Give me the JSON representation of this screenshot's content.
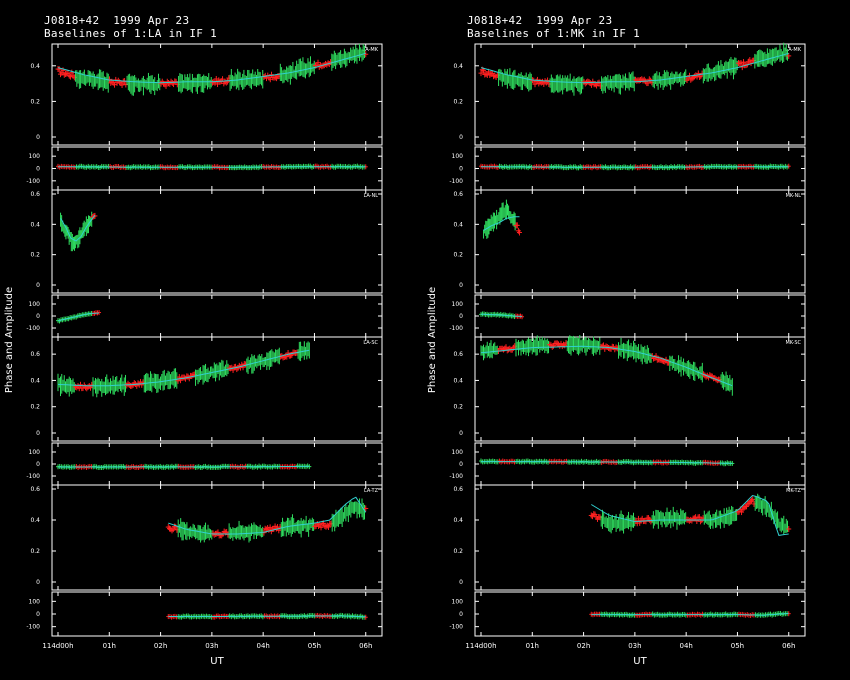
{
  "colors": {
    "background": "#000000",
    "axes": "#ffffff",
    "model": "#30d0d0",
    "series_a": "#30e060",
    "series_b": "#ff2020"
  },
  "y_axis_label": "Phase and Amplitude",
  "x_axis_label": "UT",
  "x_tick_labels": [
    "114d00h",
    "01h",
    "02h",
    "03h",
    "04h",
    "05h",
    "06h"
  ],
  "amp_tick_labels": [
    "0",
    "0.2",
    "0.4",
    "0.6"
  ],
  "phase_tick_labels": [
    "-100",
    "0",
    "100"
  ],
  "chart_data": [
    {
      "type": "line",
      "header": {
        "line1": "J0818+42  1999 Apr 23",
        "line2": "Baselines of 1:LA in IF 1"
      },
      "xlabel": "UT",
      "ylabel": "Phase and Amplitude",
      "xlim": [
        0,
        6.2
      ],
      "baselines": [
        {
          "name": "LA-MK",
          "amplitude": {
            "ylim": [
              0,
              0.5
            ],
            "ticks": [
              0,
              0.2,
              0.4
            ],
            "model_x": [
              0,
              0.5,
              1,
              1.5,
              2,
              2.5,
              3,
              3.5,
              4,
              4.5,
              5,
              5.5,
              6
            ],
            "model_y": [
              0.39,
              0.35,
              0.32,
              0.31,
              0.305,
              0.31,
              0.31,
              0.32,
              0.34,
              0.36,
              0.39,
              0.43,
              0.47
            ],
            "data_x": [
              0,
              0.5,
              1,
              1.5,
              2,
              2.5,
              3,
              3.5,
              4,
              4.5,
              5,
              5.5,
              6
            ],
            "data_y": [
              0.37,
              0.33,
              0.31,
              0.3,
              0.3,
              0.3,
              0.31,
              0.32,
              0.33,
              0.36,
              0.4,
              0.44,
              0.47
            ]
          },
          "phase": {
            "ylim": [
              -150,
              150
            ],
            "ticks": [
              -100,
              0,
              100
            ],
            "model_x": [
              0,
              1,
              2,
              3,
              4,
              5,
              6
            ],
            "model_y": [
              15,
              12,
              10,
              10,
              12,
              15,
              15
            ]
          }
        },
        {
          "name": "LA-NL",
          "amplitude": {
            "ylim": [
              0,
              0.6
            ],
            "ticks": [
              0,
              0.2,
              0.4,
              0.6
            ],
            "model_x": [
              0.05,
              0.15,
              0.25,
              0.35,
              0.45,
              0.55,
              0.65,
              0.72
            ],
            "model_y": [
              0.44,
              0.38,
              0.31,
              0.29,
              0.32,
              0.38,
              0.43,
              0.46
            ],
            "data_x": [
              0.05,
              0.15,
              0.25,
              0.35,
              0.45,
              0.55,
              0.65,
              0.72
            ],
            "data_y": [
              0.42,
              0.36,
              0.3,
              0.28,
              0.33,
              0.38,
              0.44,
              0.45
            ]
          },
          "phase": {
            "ylim": [
              -150,
              150
            ],
            "ticks": [
              -100,
              0,
              100
            ],
            "model_x": [
              0,
              0.3,
              0.6,
              0.8
            ],
            "model_y": [
              -40,
              -10,
              20,
              25
            ]
          }
        },
        {
          "name": "LA-SC",
          "amplitude": {
            "ylim": [
              0,
              0.7
            ],
            "ticks": [
              0,
              0.2,
              0.4,
              0.6
            ],
            "model_x": [
              0,
              0.5,
              1,
              1.5,
              2,
              2.5,
              3,
              3.5,
              4,
              4.5,
              4.9
            ],
            "model_y": [
              0.37,
              0.36,
              0.36,
              0.37,
              0.39,
              0.42,
              0.46,
              0.5,
              0.55,
              0.6,
              0.63
            ],
            "data_x": [
              0,
              0.5,
              1,
              1.5,
              2,
              2.5,
              3,
              3.5,
              4,
              4.5,
              4.9
            ],
            "data_y": [
              0.37,
              0.35,
              0.36,
              0.37,
              0.39,
              0.42,
              0.46,
              0.5,
              0.55,
              0.6,
              0.63
            ]
          },
          "phase": {
            "ylim": [
              -150,
              150
            ],
            "ticks": [
              -100,
              0,
              100
            ],
            "model_x": [
              0,
              1,
              2,
              3,
              4,
              4.9
            ],
            "model_y": [
              -25,
              -25,
              -24,
              -24,
              -22,
              -20
            ]
          }
        },
        {
          "name": "LA-TZ",
          "amplitude": {
            "ylim": [
              0,
              0.6
            ],
            "ticks": [
              0,
              0.2,
              0.4,
              0.6
            ],
            "model_x": [
              2.15,
              2.5,
              3,
              3.5,
              4,
              4.5,
              5,
              5.3,
              5.6,
              5.8,
              6.0
            ],
            "model_y": [
              0.38,
              0.34,
              0.31,
              0.31,
              0.32,
              0.36,
              0.38,
              0.4,
              0.5,
              0.55,
              0.45
            ],
            "data_x": [
              2.15,
              2.5,
              3,
              3.5,
              4,
              4.5,
              5,
              5.3,
              5.6,
              5.8,
              6.0
            ],
            "data_y": [
              0.35,
              0.33,
              0.31,
              0.32,
              0.33,
              0.36,
              0.36,
              0.37,
              0.44,
              0.48,
              0.46
            ]
          },
          "phase": {
            "ylim": [
              -150,
              150
            ],
            "ticks": [
              -100,
              0,
              100
            ],
            "model_x": [
              2.15,
              3,
              4,
              5,
              5.5,
              6.0
            ],
            "model_y": [
              -20,
              -20,
              -18,
              -16,
              -15,
              -22
            ]
          }
        }
      ]
    },
    {
      "type": "line",
      "header": {
        "line1": "J0818+42  1999 Apr 23",
        "line2": "Baselines of 1:MK in IF 1"
      },
      "xlabel": "UT",
      "ylabel": "Phase and Amplitude",
      "xlim": [
        0,
        6.2
      ],
      "baselines": [
        {
          "name": "LA-MK",
          "amplitude": {
            "ylim": [
              0,
              0.5
            ],
            "ticks": [
              0,
              0.2,
              0.4
            ],
            "model_x": [
              0,
              0.5,
              1,
              1.5,
              2,
              2.5,
              3,
              3.5,
              4,
              4.5,
              5,
              5.5,
              6
            ],
            "model_y": [
              0.39,
              0.35,
              0.32,
              0.31,
              0.305,
              0.31,
              0.31,
              0.32,
              0.34,
              0.36,
              0.39,
              0.43,
              0.47
            ],
            "data_x": [
              0,
              0.5,
              1,
              1.5,
              2,
              2.5,
              3,
              3.5,
              4,
              4.5,
              5,
              5.5,
              6
            ],
            "data_y": [
              0.37,
              0.33,
              0.31,
              0.3,
              0.3,
              0.3,
              0.31,
              0.32,
              0.33,
              0.36,
              0.4,
              0.44,
              0.47
            ]
          },
          "phase": {
            "ylim": [
              -150,
              150
            ],
            "ticks": [
              -100,
              0,
              100
            ],
            "model_x": [
              0,
              1,
              2,
              3,
              4,
              5,
              6
            ],
            "model_y": [
              15,
              12,
              10,
              10,
              12,
              15,
              15
            ]
          }
        },
        {
          "name": "MK-NL",
          "amplitude": {
            "ylim": [
              0,
              0.6
            ],
            "ticks": [
              0,
              0.2,
              0.4,
              0.6
            ],
            "model_x": [
              0.05,
              0.2,
              0.35,
              0.5,
              0.65,
              0.75
            ],
            "model_y": [
              0.36,
              0.39,
              0.41,
              0.44,
              0.45,
              0.45
            ],
            "data_x": [
              0.05,
              0.2,
              0.35,
              0.5,
              0.65,
              0.75
            ],
            "data_y": [
              0.35,
              0.4,
              0.45,
              0.5,
              0.42,
              0.35
            ]
          },
          "phase": {
            "ylim": [
              -150,
              150
            ],
            "ticks": [
              -100,
              0,
              100
            ],
            "model_x": [
              0,
              0.4,
              0.8
            ],
            "model_y": [
              15,
              8,
              -5
            ]
          }
        },
        {
          "name": "MK-SC",
          "amplitude": {
            "ylim": [
              0,
              0.7
            ],
            "ticks": [
              0,
              0.2,
              0.4,
              0.6
            ],
            "model_x": [
              0,
              0.5,
              1,
              1.5,
              2,
              2.5,
              3,
              3.5,
              4,
              4.5,
              4.9
            ],
            "model_y": [
              0.61,
              0.63,
              0.65,
              0.655,
              0.66,
              0.65,
              0.62,
              0.57,
              0.5,
              0.42,
              0.36
            ],
            "data_x": [
              0,
              0.5,
              1,
              1.5,
              2,
              2.5,
              3,
              3.5,
              4,
              4.5,
              4.9
            ],
            "data_y": [
              0.62,
              0.64,
              0.66,
              0.67,
              0.67,
              0.65,
              0.62,
              0.56,
              0.49,
              0.42,
              0.36
            ]
          },
          "phase": {
            "ylim": [
              -150,
              150
            ],
            "ticks": [
              -100,
              0,
              100
            ],
            "model_x": [
              0,
              1,
              2,
              3,
              4,
              4.9
            ],
            "model_y": [
              20,
              20,
              18,
              15,
              12,
              5
            ]
          }
        },
        {
          "name": "MK-TZ",
          "amplitude": {
            "ylim": [
              0,
              0.6
            ],
            "ticks": [
              0,
              0.2,
              0.4,
              0.6
            ],
            "model_x": [
              2.15,
              2.5,
              3,
              3.5,
              4,
              4.5,
              5,
              5.3,
              5.6,
              5.8,
              6.0
            ],
            "model_y": [
              0.5,
              0.43,
              0.39,
              0.4,
              0.4,
              0.4,
              0.46,
              0.56,
              0.52,
              0.3,
              0.31
            ],
            "data_x": [
              2.15,
              2.5,
              3,
              3.5,
              4,
              4.5,
              5,
              5.3,
              5.6,
              5.8,
              6.0
            ],
            "data_y": [
              0.44,
              0.38,
              0.39,
              0.41,
              0.41,
              0.4,
              0.44,
              0.52,
              0.48,
              0.38,
              0.34
            ]
          },
          "phase": {
            "ylim": [
              -150,
              150
            ],
            "ticks": [
              -100,
              0,
              100
            ],
            "model_x": [
              2.15,
              3,
              4,
              5,
              5.5,
              6.0
            ],
            "model_y": [
              -5,
              -5,
              -5,
              -4,
              -10,
              5
            ]
          }
        }
      ]
    }
  ]
}
